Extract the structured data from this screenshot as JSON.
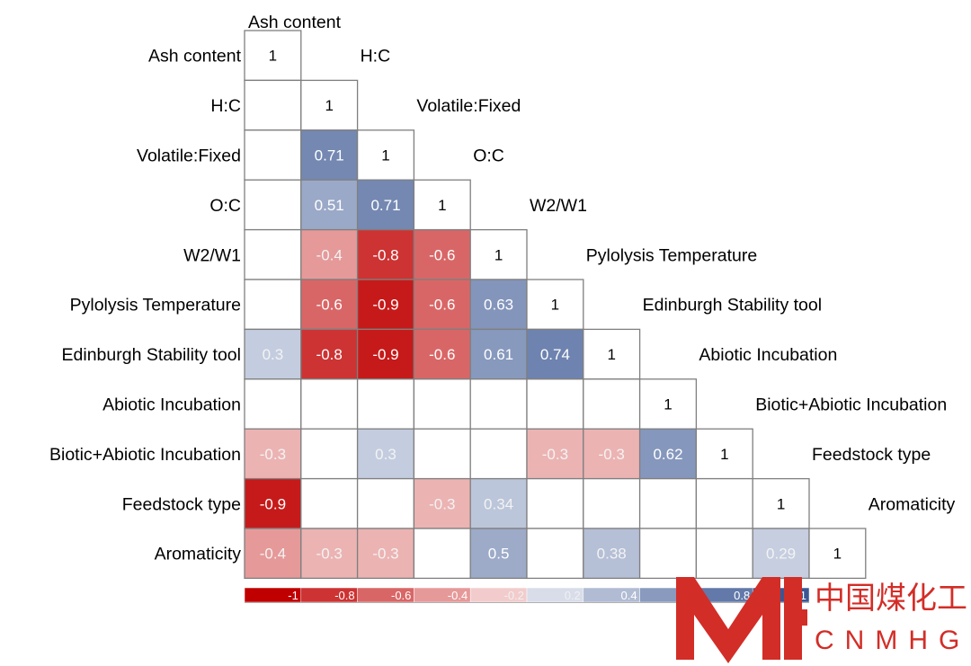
{
  "chart_data": {
    "type": "heatmap",
    "variables": [
      "Ash content",
      "H:C",
      "Volatile:Fixed",
      "O:C",
      "W2/W1",
      "Pylolysis Temperature",
      "Edinburgh Stability tool",
      "Abiotic Incubation",
      "Biotic+Abiotic Incubation",
      "Feedstock type",
      "Aromaticity"
    ],
    "matrix": [
      [
        1,
        null,
        null,
        null,
        null,
        null,
        null,
        null,
        null,
        null,
        null
      ],
      [
        null,
        1,
        null,
        null,
        null,
        null,
        null,
        null,
        null,
        null,
        null
      ],
      [
        null,
        0.71,
        1,
        null,
        null,
        null,
        null,
        null,
        null,
        null,
        null
      ],
      [
        null,
        0.51,
        0.71,
        1,
        null,
        null,
        null,
        null,
        null,
        null,
        null
      ],
      [
        null,
        -0.4,
        -0.8,
        -0.6,
        1,
        null,
        null,
        null,
        null,
        null,
        null
      ],
      [
        null,
        -0.6,
        -0.9,
        -0.6,
        0.63,
        1,
        null,
        null,
        null,
        null,
        null
      ],
      [
        0.3,
        -0.8,
        -0.9,
        -0.6,
        0.61,
        0.74,
        1,
        null,
        null,
        null,
        null
      ],
      [
        null,
        null,
        null,
        null,
        null,
        null,
        null,
        1,
        null,
        null,
        null
      ],
      [
        -0.3,
        null,
        0.3,
        null,
        null,
        -0.3,
        -0.3,
        0.62,
        1,
        null,
        null
      ],
      [
        -0.9,
        null,
        null,
        -0.3,
        0.34,
        null,
        null,
        null,
        null,
        1,
        null
      ],
      [
        -0.4,
        -0.3,
        -0.3,
        null,
        0.5,
        null,
        0.38,
        null,
        null,
        0.29,
        1
      ]
    ],
    "colorbar": {
      "ticks": [
        -1,
        -0.8,
        -0.6,
        -0.4,
        -0.2,
        0.2,
        0.4,
        0.6,
        0.8,
        1
      ],
      "tick_labels": [
        "-1",
        "-0.8",
        "-0.6",
        "-0.4",
        "-0.2",
        "0.2",
        "0.4",
        "0.6",
        "0.8",
        "1"
      ],
      "range": [
        -1,
        1
      ]
    },
    "colors": {
      "negative": "#c00000",
      "positive": "#3b5793",
      "neutral": "#ffffff",
      "grid": "#7f7f7f"
    }
  },
  "watermark": {
    "chinese": "中国煤化工",
    "latin": "CNMHG",
    "color": "#d32d27"
  }
}
